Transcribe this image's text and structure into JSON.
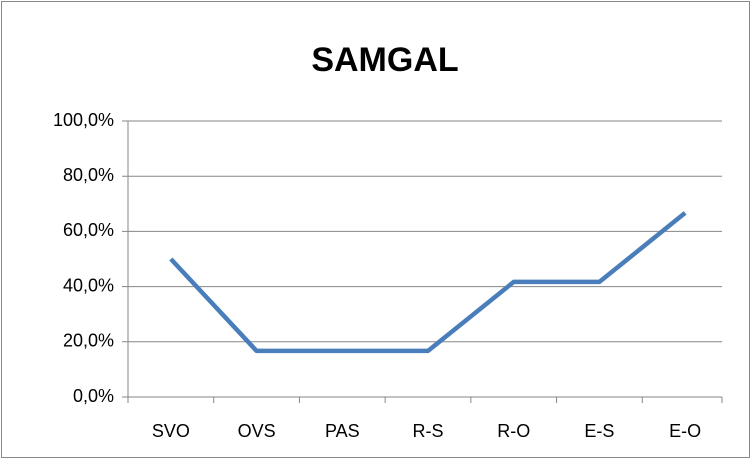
{
  "chart_data": {
    "type": "line",
    "title": "SAMGAL",
    "categories": [
      "SVO",
      "OVS",
      "PAS",
      "R-S",
      "R-O",
      "E-S",
      "E-O"
    ],
    "values": [
      50.0,
      16.7,
      16.7,
      16.7,
      41.7,
      41.7,
      66.7
    ],
    "color": "#4a7ebb",
    "ylim": [
      0,
      100
    ],
    "yticks": [
      {
        "value": 0,
        "label": "0,0%"
      },
      {
        "value": 20,
        "label": "20,0%"
      },
      {
        "value": 40,
        "label": "40,0%"
      },
      {
        "value": 60,
        "label": "60,0%"
      },
      {
        "value": 80,
        "label": "80,0%"
      },
      {
        "value": 100,
        "label": "100,0%"
      }
    ],
    "grid": true
  }
}
